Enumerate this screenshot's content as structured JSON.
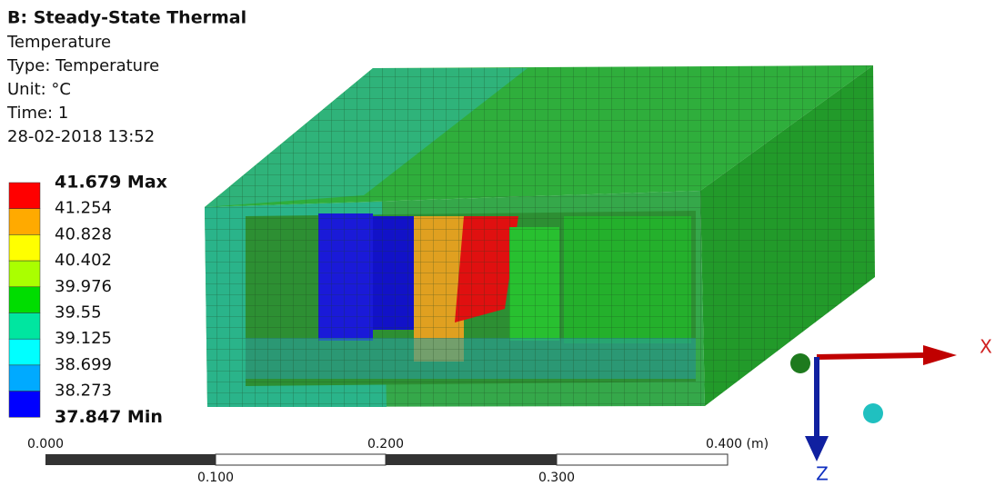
{
  "header": {
    "title": "B: Steady-State Thermal",
    "lines": [
      "Temperature",
      "Type: Temperature",
      "Unit: °C",
      "Time: 1",
      "28-02-2018 13:52"
    ]
  },
  "legend": {
    "labels": [
      "41.679 Max",
      "41.254",
      "40.828",
      "40.402",
      "39.976",
      "39.55",
      "39.125",
      "38.699",
      "38.273",
      "37.847 Min"
    ],
    "colors": [
      "#ff0000",
      "#ffaa00",
      "#ffff00",
      "#aaff00",
      "#00dd00",
      "#00e6a0",
      "#00ffff",
      "#00aaff",
      "#0000ff"
    ]
  },
  "scale_bar": {
    "top_labels": [
      "0.000",
      "0.200",
      "0.400 (m)"
    ],
    "bottom_labels": [
      "0.100",
      "0.300"
    ]
  },
  "triad": {
    "x_label": "X",
    "z_label": "Z"
  }
}
